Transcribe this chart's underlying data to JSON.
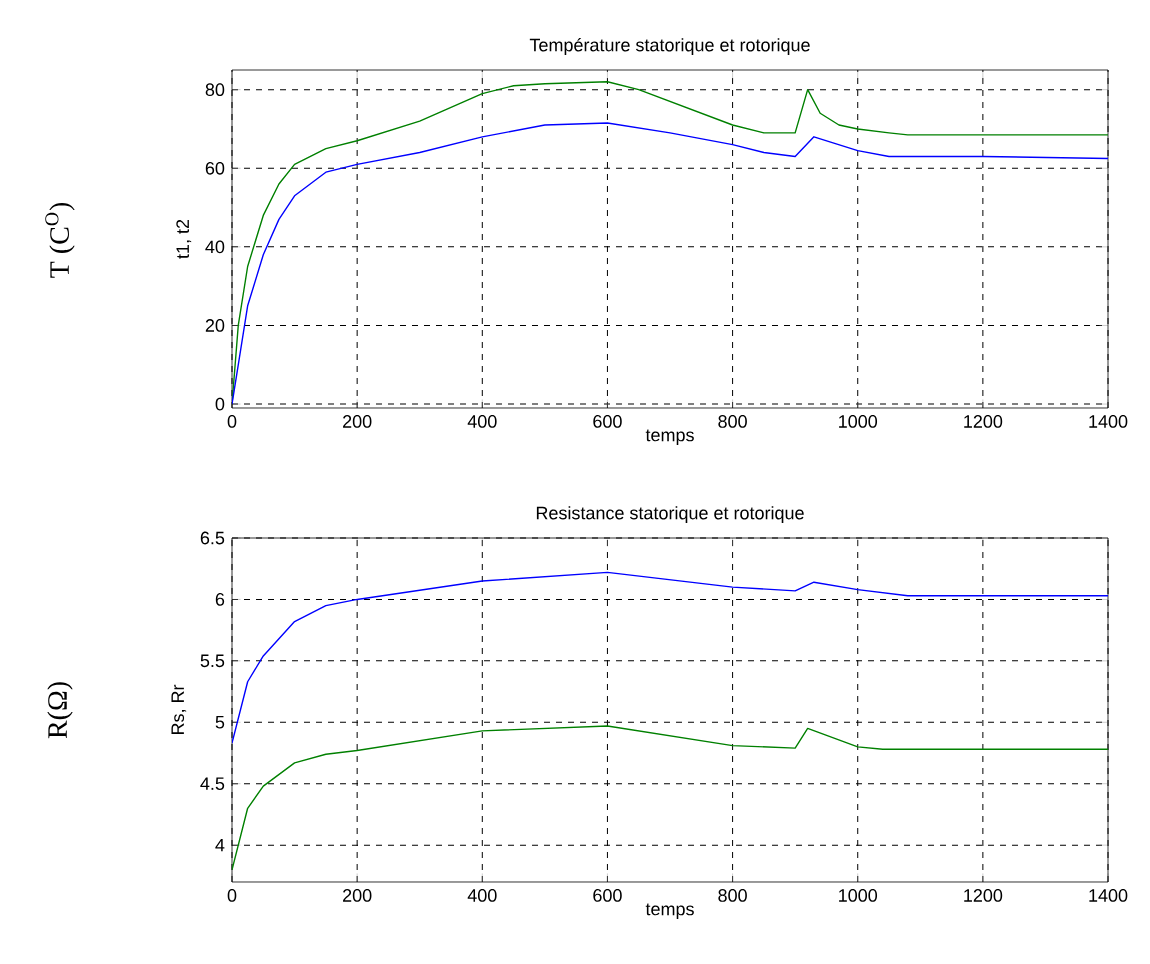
{
  "chart_data": [
    {
      "type": "line",
      "title": "Température statorique et rotorique",
      "xlabel": "temps",
      "ylabel": "t1, t2",
      "annotations": [
        "T (C$^{O}$)"
      ],
      "grid": true,
      "xlim": [
        0,
        1400
      ],
      "ylim": [
        -1,
        85
      ],
      "xticks": [
        0,
        200,
        400,
        600,
        800,
        1000,
        1200,
        1400
      ],
      "yticks": [
        0,
        20,
        40,
        60,
        80
      ],
      "series": [
        {
          "color": "#008000",
          "x": [
            0,
            10,
            25,
            50,
            75,
            100,
            150,
            200,
            300,
            400,
            450,
            500,
            600,
            650,
            800,
            850,
            900,
            920,
            940,
            970,
            1000,
            1050,
            1080,
            1400
          ],
          "values": [
            0,
            20,
            35,
            48,
            56,
            61,
            65,
            67,
            72,
            79,
            81,
            81.5,
            82,
            80,
            71,
            69,
            69,
            80,
            74,
            71,
            70,
            69,
            68.5,
            68.5
          ]
        },
        {
          "color": "#0000ff",
          "x": [
            0,
            10,
            25,
            50,
            75,
            100,
            150,
            200,
            300,
            400,
            500,
            600,
            700,
            800,
            850,
            900,
            930,
            1000,
            1050,
            1200,
            1400
          ],
          "values": [
            0,
            10,
            25,
            38,
            47,
            53,
            59,
            61,
            64,
            68,
            71,
            71.5,
            69,
            66,
            64,
            63,
            68,
            64.5,
            63,
            63,
            62.5
          ]
        }
      ]
    },
    {
      "type": "line",
      "title": "Resistance statorique et rotorique",
      "xlabel": "temps",
      "ylabel": "Rs, Rr",
      "annotations": [
        "R(Ω)"
      ],
      "grid": true,
      "xlim": [
        0,
        1400
      ],
      "ylim": [
        3.7,
        6.5
      ],
      "xticks": [
        0,
        200,
        400,
        600,
        800,
        1000,
        1200,
        1400
      ],
      "yticks": [
        4,
        4.5,
        5,
        5.5,
        6,
        6.5
      ],
      "series": [
        {
          "color": "#0000ff",
          "x": [
            0,
            25,
            50,
            100,
            150,
            200,
            400,
            600,
            800,
            900,
            930,
            1000,
            1080,
            1400
          ],
          "values": [
            4.83,
            5.33,
            5.54,
            5.82,
            5.95,
            6.0,
            6.15,
            6.22,
            6.1,
            6.07,
            6.14,
            6.08,
            6.03,
            6.03
          ]
        },
        {
          "color": "#008000",
          "x": [
            0,
            25,
            50,
            100,
            150,
            200,
            400,
            600,
            800,
            900,
            920,
            1000,
            1040,
            1400
          ],
          "values": [
            3.8,
            4.3,
            4.48,
            4.67,
            4.74,
            4.77,
            4.93,
            4.97,
            4.81,
            4.79,
            4.95,
            4.8,
            4.78,
            4.78
          ]
        }
      ]
    }
  ]
}
